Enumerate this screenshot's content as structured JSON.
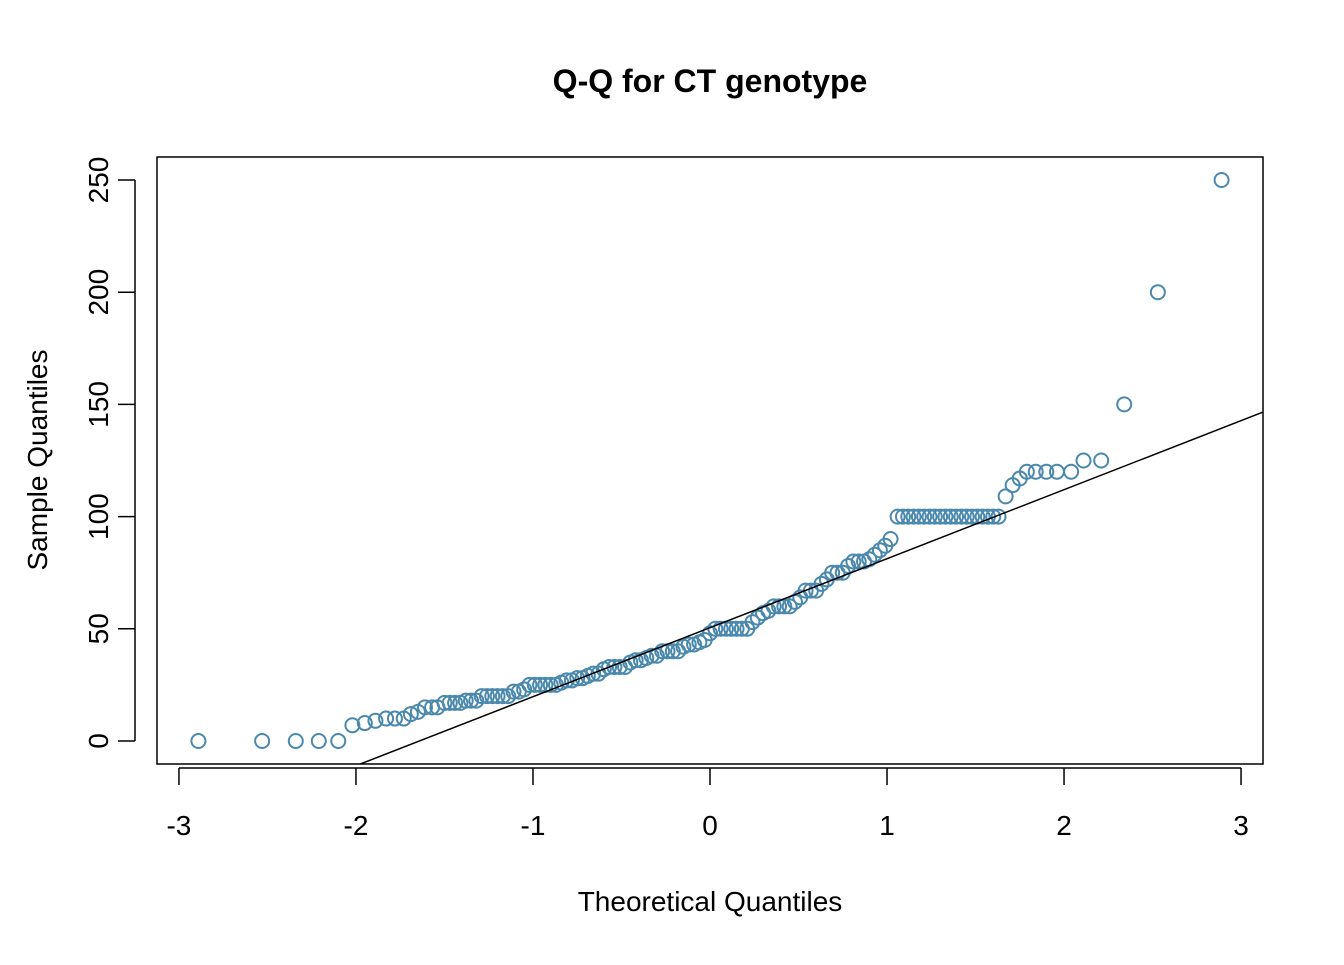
{
  "chart_data": {
    "type": "scatter",
    "title": "Q-Q for CT genotype",
    "x_label": "Theoretical Quantiles",
    "y_label": "Sample Quantiles",
    "color": "#4a89ad",
    "x": [
      -2.89,
      -2.53,
      -2.34,
      -2.21,
      -2.1,
      -2.02,
      -1.95,
      -1.89,
      -1.83,
      -1.78,
      -1.73,
      -1.69,
      -1.65,
      -1.61,
      -1.57,
      -1.54,
      -1.5,
      -1.47,
      -1.44,
      -1.41,
      -1.38,
      -1.35,
      -1.32,
      -1.29,
      -1.26,
      -1.23,
      -1.2,
      -1.17,
      -1.14,
      -1.11,
      -1.08,
      -1.05,
      -1.02,
      -0.99,
      -0.96,
      -0.93,
      -0.9,
      -0.87,
      -0.84,
      -0.81,
      -0.78,
      -0.75,
      -0.72,
      -0.69,
      -0.66,
      -0.63,
      -0.6,
      -0.57,
      -0.54,
      -0.51,
      -0.48,
      -0.45,
      -0.42,
      -0.39,
      -0.36,
      -0.33,
      -0.3,
      -0.27,
      -0.24,
      -0.21,
      -0.18,
      -0.15,
      -0.12,
      -0.09,
      -0.06,
      -0.03,
      0,
      0.03,
      0.06,
      0.09,
      0.12,
      0.15,
      0.18,
      0.21,
      0.24,
      0.27,
      0.3,
      0.33,
      0.36,
      0.39,
      0.42,
      0.45,
      0.48,
      0.51,
      0.54,
      0.57,
      0.6,
      0.63,
      0.66,
      0.69,
      0.72,
      0.75,
      0.78,
      0.81,
      0.84,
      0.87,
      0.9,
      0.93,
      0.96,
      0.99,
      1.02,
      1.06,
      1.09,
      1.12,
      1.15,
      1.18,
      1.21,
      1.24,
      1.27,
      1.3,
      1.33,
      1.36,
      1.39,
      1.42,
      1.45,
      1.48,
      1.51,
      1.54,
      1.57,
      1.6,
      1.63,
      1.67,
      1.71,
      1.75,
      1.79,
      1.84,
      1.9,
      1.96,
      2.04,
      2.11,
      2.21,
      2.34,
      2.53,
      2.89
    ],
    "values": [
      0,
      0,
      0,
      0,
      0,
      7,
      8,
      9,
      10,
      10,
      10,
      12,
      13,
      15,
      15,
      15,
      17,
      17,
      17,
      17,
      18,
      18,
      18,
      20,
      20,
      20,
      20,
      20,
      20,
      22,
      22,
      23,
      25,
      25,
      25,
      25,
      25,
      25,
      26,
      27,
      27,
      28,
      28,
      29,
      30,
      30,
      32,
      33,
      33,
      33,
      33,
      35,
      36,
      36,
      37,
      38,
      38,
      40,
      40,
      40,
      40,
      42,
      43,
      43,
      44,
      45,
      48,
      50,
      50,
      50,
      50,
      50,
      50,
      50,
      53,
      55,
      57,
      58,
      60,
      60,
      60,
      60,
      62,
      64,
      67,
      67,
      67,
      70,
      72,
      75,
      75,
      75,
      78,
      80,
      80,
      80,
      81,
      83,
      85,
      87,
      90,
      100,
      100,
      100,
      100,
      100,
      100,
      100,
      100,
      100,
      100,
      100,
      100,
      100,
      100,
      100,
      100,
      100,
      100,
      100,
      100,
      109,
      114,
      117,
      120,
      120,
      120,
      120,
      120,
      125,
      125,
      150,
      200,
      250
    ],
    "reference_line": {
      "slope": 30.75,
      "intercept": 50.5,
      "color": "#000000"
    },
    "xlim": [
      -3.124,
      3.124
    ],
    "ylim": [
      -10.25,
      260.25
    ],
    "xticks": [
      -3,
      -2,
      -1,
      0,
      1,
      2,
      3
    ],
    "yticks": [
      0,
      50,
      100,
      150,
      200,
      250
    ]
  }
}
